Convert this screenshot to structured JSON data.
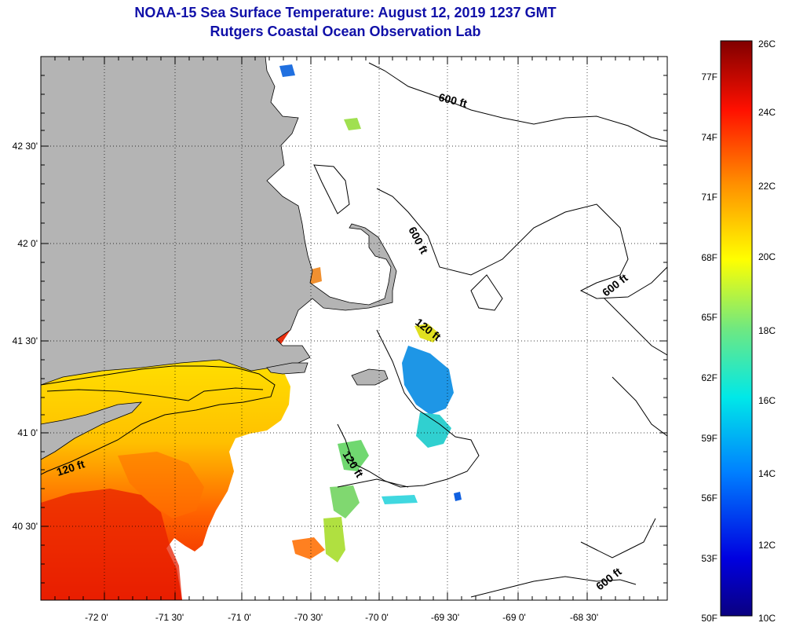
{
  "title": "NOAA-15 Sea Surface Temperature:  August 12, 2019 1237 GMT",
  "subtitle": "Rutgers Coastal Ocean Observation Lab",
  "lat_labels": [
    "42 30'",
    "42 0'",
    "41 30'",
    "41 0'",
    "40 30'"
  ],
  "lon_labels": [
    "-72 0'",
    "-71 30'",
    "-71 0'",
    "-70 30'",
    "-70 0'",
    "-69 30'",
    "-69 0'",
    "-68 30'"
  ],
  "contour_labels": [
    "600 ft",
    "600 ft",
    "600 ft",
    "600 ft",
    "120 ft",
    "120 ft",
    "120 ft"
  ],
  "colorbar": {
    "fahrenheit": [
      "77F",
      "74F",
      "71F",
      "68F",
      "65F",
      "62F",
      "59F",
      "56F",
      "53F",
      "50F"
    ],
    "celsius": [
      "26C",
      "24C",
      "22C",
      "20C",
      "18C",
      "16C",
      "14C",
      "12C",
      "10C"
    ]
  },
  "colors": {
    "land": "#b4b4b4",
    "title": "#1010a8"
  }
}
